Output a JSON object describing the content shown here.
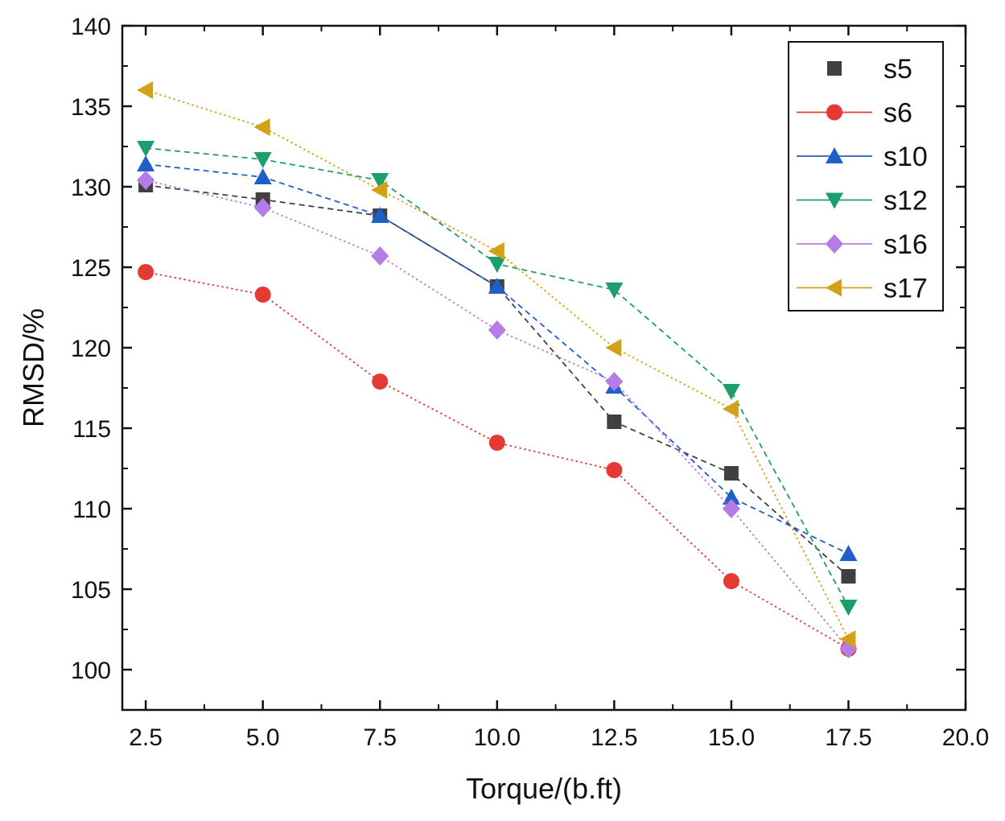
{
  "chart_data": {
    "type": "line",
    "title": "",
    "xlabel": "Torque/(b.ft)",
    "ylabel": "RMSD/%",
    "xlim": [
      2,
      20
    ],
    "ylim": [
      97.5,
      140
    ],
    "x_ticks": [
      "2.5",
      "5.0",
      "7.5",
      "10.0",
      "12.5",
      "15.0",
      "17.5",
      "20.0"
    ],
    "y_ticks": [
      "100",
      "105",
      "110",
      "115",
      "120",
      "125",
      "130",
      "135",
      "140"
    ],
    "legend_position": "top-right",
    "x": [
      2.5,
      5.0,
      7.5,
      10.0,
      12.5,
      15.0,
      17.5
    ],
    "series": [
      {
        "name": "s5",
        "color": "#404040",
        "marker": "square",
        "dash": "dashed",
        "values": [
          130.1,
          129.2,
          128.2,
          123.8,
          115.4,
          112.2,
          105.8
        ]
      },
      {
        "name": "s6",
        "color": "#e53935",
        "marker": "circle",
        "dash": "dotted",
        "values": [
          124.7,
          123.3,
          117.9,
          114.1,
          112.4,
          105.5,
          101.3
        ]
      },
      {
        "name": "s10",
        "color": "#1f5fc8",
        "marker": "triangle-up",
        "dash": "dashed",
        "values": [
          131.4,
          130.6,
          128.2,
          123.8,
          117.6,
          110.7,
          107.2
        ]
      },
      {
        "name": "s12",
        "color": "#1e9e6a",
        "marker": "triangle-down",
        "dash": "dashed",
        "values": [
          132.4,
          131.7,
          130.4,
          125.2,
          123.6,
          117.3,
          103.9
        ]
      },
      {
        "name": "s16",
        "color": "#b57be6",
        "marker": "diamond",
        "dash": "dotted",
        "values": [
          130.4,
          128.7,
          125.7,
          121.1,
          117.9,
          110.0,
          101.3
        ]
      },
      {
        "name": "s17",
        "color": "#d4a017",
        "marker": "triangle-left",
        "dash": "dotted",
        "values": [
          136.0,
          133.7,
          129.8,
          126.0,
          120.0,
          116.2,
          101.9
        ]
      }
    ]
  }
}
